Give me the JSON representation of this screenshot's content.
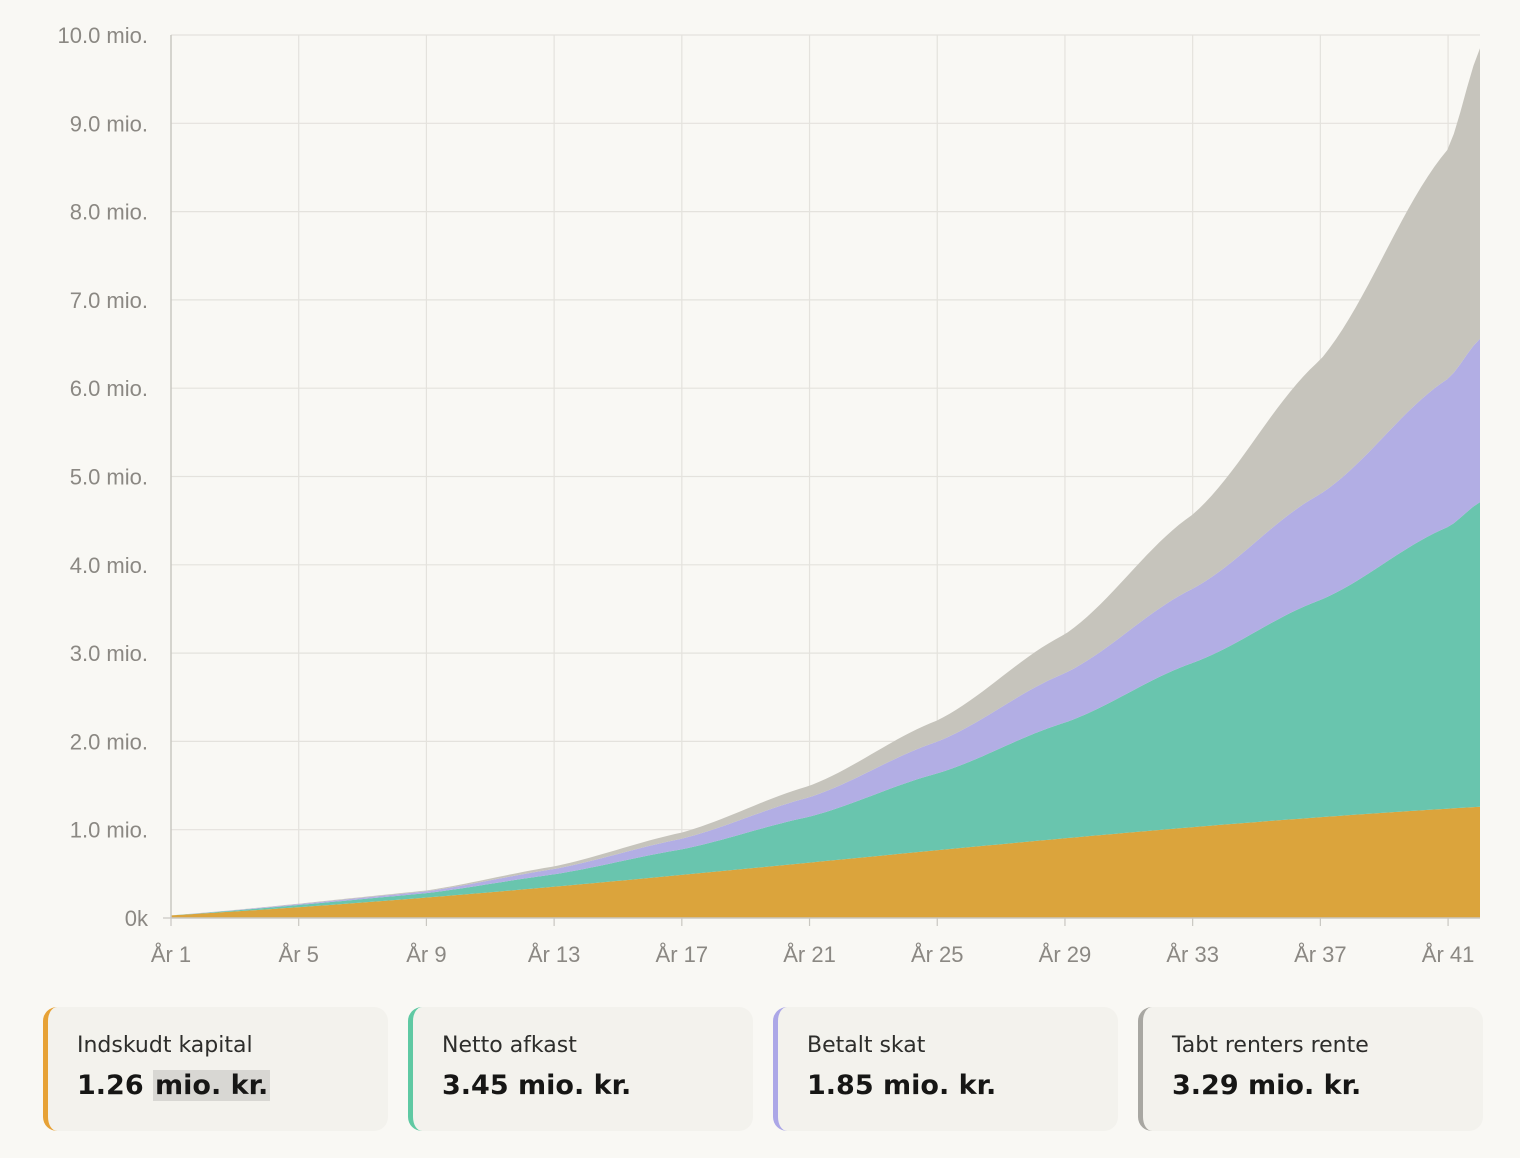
{
  "chart_data": {
    "type": "area",
    "stacked": true,
    "x_tick_labels": [
      "År 1",
      "År 5",
      "År 9",
      "År 13",
      "År 17",
      "År 21",
      "År 25",
      "År 29",
      "År 33",
      "År 37",
      "År 41"
    ],
    "y_tick_labels": [
      "0k",
      "1.0 mio.",
      "2.0 mio.",
      "3.0 mio.",
      "4.0 mio.",
      "5.0 mio.",
      "6.0 mio.",
      "7.0 mio.",
      "8.0 mio.",
      "9.0 mio.",
      "10.0 mio."
    ],
    "xlim": [
      1,
      42
    ],
    "ylim": [
      0,
      10.0
    ],
    "y_unit": "mio.",
    "grid": true,
    "legend": "cards-below",
    "series": [
      {
        "name": "Indskudt kapital",
        "color": "#dba43c",
        "x": [
          1,
          42
        ],
        "values": [
          0.03,
          1.26
        ]
      },
      {
        "name": "Netto afkast",
        "color": "#69c5ae",
        "x": [
          1,
          9,
          13,
          17,
          21,
          25,
          29,
          33,
          37,
          41,
          42
        ],
        "values": [
          0.0,
          0.05,
          0.14,
          0.29,
          0.52,
          0.87,
          1.31,
          1.86,
          2.46,
          3.19,
          3.45
        ]
      },
      {
        "name": "Betalt skat",
        "color": "#b2aee4",
        "x": [
          1,
          9,
          13,
          17,
          21,
          25,
          29,
          33,
          37,
          41,
          42
        ],
        "values": [
          0.0,
          0.02,
          0.06,
          0.12,
          0.22,
          0.36,
          0.56,
          0.84,
          1.2,
          1.68,
          1.85
        ]
      },
      {
        "name": "Tabt renters rente",
        "color": "#c6c4bc",
        "x": [
          1,
          9,
          13,
          17,
          21,
          25,
          29,
          33,
          37,
          41,
          42
        ],
        "values": [
          0.0,
          0.01,
          0.03,
          0.07,
          0.13,
          0.24,
          0.44,
          0.84,
          1.52,
          2.6,
          3.29
        ]
      }
    ]
  },
  "summary": [
    {
      "label": "Indskudt kapital",
      "value_number": "1.26",
      "value_unit": "mio. kr.",
      "color": "#e7a236"
    },
    {
      "label": "Netto afkast",
      "value": "3.45 mio. kr.",
      "color": "#5fc9a3"
    },
    {
      "label": "Betalt skat",
      "value": "1.85 mio. kr.",
      "color": "#aca7e7"
    },
    {
      "label": "Tabt renters rente",
      "value": "3.29 mio. kr.",
      "color": "#a8a7a2"
    }
  ]
}
